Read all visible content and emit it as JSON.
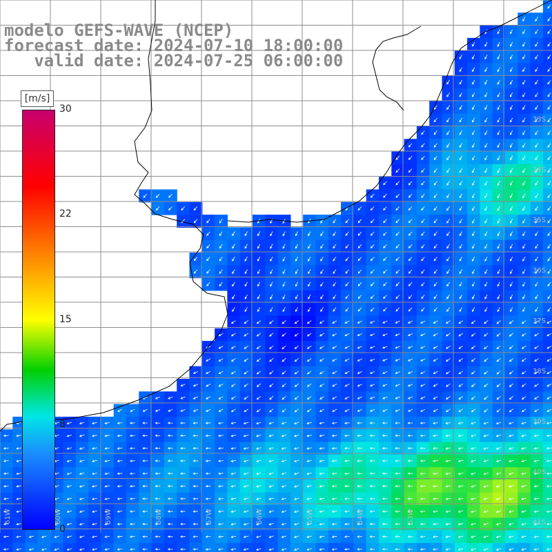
{
  "header": {
    "line1": "modelo GEFS-WAVE (NCEP)",
    "line2": "forecast date: 2024-07-10 18:00:00",
    "line3": "   valid date: 2024-07-25 06:00:00"
  },
  "colorbar": {
    "unit": "[m/s]",
    "ticks": [
      "30",
      "22",
      "15",
      "8",
      "0"
    ],
    "tick_values": [
      30,
      22,
      15,
      8,
      0
    ],
    "range": [
      0,
      30
    ],
    "colors": [
      "#0000ff",
      "#1a8cff",
      "#00e6e6",
      "#00d000",
      "#ffff00",
      "#ff8800",
      "#ff0000",
      "#c8006e"
    ]
  },
  "lat_labels": [
    "33S",
    "34S",
    "35S",
    "36S",
    "37S",
    "38S",
    "39S",
    "40S",
    "41S"
  ],
  "lon_labels": [
    "61W",
    "60W",
    "59W",
    "58W",
    "57W",
    "56W",
    "55W",
    "54W",
    "53W"
  ],
  "colors": {
    "land": "#ffffff",
    "grid": "#8c8c8c",
    "coast": "#000000",
    "arrows": "#ffffff",
    "header_text": "#8a8a8a"
  }
}
